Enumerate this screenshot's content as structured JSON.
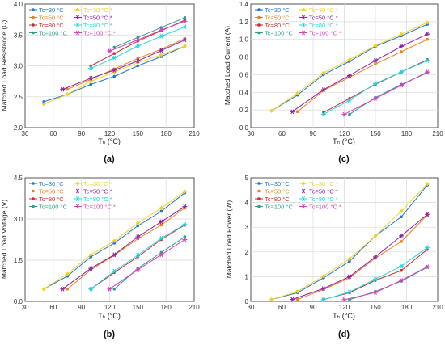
{
  "palette": {
    "c30": "#1f77d4",
    "c50": "#f07f1a",
    "c80": "#d62728",
    "c100": "#2ca089",
    "c30s": "#f5d21a",
    "c50s": "#8e22a8",
    "c80s": "#1fd8e8",
    "c100s": "#d63fc4"
  },
  "legend_labels": [
    "Tc=30 °C",
    "Tc=50 °C",
    "Tc=80 °C",
    "Tc=100 °C",
    "Tc=30 °C *",
    "Tc=50 °C *",
    "Tc=80 °C *",
    "Tc=100 °C *"
  ],
  "chart_data": [
    {
      "type": "line",
      "panel_label": "(a)",
      "xlabel": "Tₕ (°C)",
      "ylabel": "Matched Load Resistance (Ω)",
      "xlim": [
        30,
        210
      ],
      "ylim": [
        2.0,
        4.0
      ],
      "xticks": [
        "30",
        "60",
        "90",
        "120",
        "150",
        "180",
        "210"
      ],
      "yticks": [
        "2.0",
        "2.5",
        "3.0",
        "3.5",
        "4.0"
      ],
      "series": [
        {
          "name": "Tc=30 °C",
          "x": [
            50,
            75,
            100,
            125,
            150,
            175,
            200
          ],
          "y": [
            2.42,
            2.54,
            2.7,
            2.83,
            3.0,
            3.15,
            3.32
          ]
        },
        {
          "name": "Tc=50 °C",
          "x": [
            75,
            100,
            125,
            150,
            175,
            200
          ],
          "y": [
            2.62,
            2.78,
            2.95,
            3.12,
            3.27,
            3.44
          ]
        },
        {
          "name": "Tc=80 °C",
          "x": [
            100,
            125,
            150,
            175,
            200
          ],
          "y": [
            3.0,
            3.2,
            3.4,
            3.57,
            3.74
          ]
        },
        {
          "name": "Tc=100 °C",
          "x": [
            125,
            150,
            175,
            200
          ],
          "y": [
            3.3,
            3.46,
            3.62,
            3.78
          ]
        },
        {
          "name": "Tc=30 °C *",
          "x": [
            50,
            75,
            100,
            125,
            150,
            175,
            200
          ],
          "y": [
            2.38,
            2.54,
            2.75,
            2.9,
            3.05,
            3.18,
            3.32
          ]
        },
        {
          "name": "Tc=50 °C *",
          "x": [
            70,
            100,
            125,
            150,
            175,
            200
          ],
          "y": [
            2.62,
            2.8,
            2.93,
            3.08,
            3.25,
            3.42
          ]
        },
        {
          "name": "Tc=80 °C *",
          "x": [
            100,
            125,
            150,
            175,
            200
          ],
          "y": [
            2.96,
            3.13,
            3.32,
            3.48,
            3.63
          ]
        },
        {
          "name": "Tc=100 °C *",
          "x": [
            120,
            150,
            175,
            200
          ],
          "y": [
            3.24,
            3.42,
            3.58,
            3.72
          ]
        }
      ]
    },
    {
      "type": "line",
      "panel_label": "(c)",
      "xlabel": "Tₕ (°C)",
      "ylabel": "Matched Load Current (A)",
      "xlim": [
        30,
        210
      ],
      "ylim": [
        0.0,
        1.4
      ],
      "xticks": [
        "30",
        "60",
        "90",
        "120",
        "150",
        "180",
        "210"
      ],
      "yticks": [
        "0.0",
        "0.2",
        "0.4",
        "0.6",
        "0.8",
        "1.0",
        "1.2",
        "1.4"
      ],
      "series": [
        {
          "name": "Tc=30 °C",
          "x": [
            50,
            75,
            100,
            125,
            150,
            175,
            200
          ],
          "y": [
            0.19,
            0.37,
            0.6,
            0.75,
            0.92,
            1.04,
            1.17
          ]
        },
        {
          "name": "Tc=50 °C",
          "x": [
            75,
            100,
            125,
            150,
            175,
            200
          ],
          "y": [
            0.18,
            0.42,
            0.57,
            0.72,
            0.86,
            1.0
          ]
        },
        {
          "name": "Tc=80 °C",
          "x": [
            100,
            125,
            150,
            175,
            200
          ],
          "y": [
            0.17,
            0.33,
            0.49,
            0.63,
            0.77
          ]
        },
        {
          "name": "Tc=100 °C",
          "x": [
            125,
            150,
            175,
            200
          ],
          "y": [
            0.15,
            0.34,
            0.49,
            0.62
          ]
        },
        {
          "name": "Tc=30 °C *",
          "x": [
            50,
            75,
            100,
            125,
            150,
            175,
            200
          ],
          "y": [
            0.19,
            0.39,
            0.62,
            0.77,
            0.93,
            1.06,
            1.19
          ]
        },
        {
          "name": "Tc=50 °C *",
          "x": [
            70,
            100,
            125,
            150,
            175,
            200
          ],
          "y": [
            0.18,
            0.43,
            0.59,
            0.76,
            0.92,
            1.06
          ]
        },
        {
          "name": "Tc=80 °C *",
          "x": [
            100,
            125,
            150,
            175,
            200
          ],
          "y": [
            0.15,
            0.31,
            0.5,
            0.63,
            0.76
          ]
        },
        {
          "name": "Tc=100 °C *",
          "x": [
            120,
            150,
            175,
            200
          ],
          "y": [
            0.15,
            0.33,
            0.48,
            0.63
          ]
        }
      ]
    },
    {
      "type": "line",
      "panel_label": "(b)",
      "xlabel": "Tₕ (°C)",
      "ylabel": "Matched Load Voltage (V)",
      "xlim": [
        30,
        210
      ],
      "ylim": [
        0.0,
        4.5
      ],
      "xticks": [
        "30",
        "60",
        "90",
        "120",
        "150",
        "180",
        "210"
      ],
      "yticks": [
        "0.0",
        "1.5",
        "3.0",
        "4.5"
      ],
      "series": [
        {
          "name": "Tc=30 °C",
          "x": [
            50,
            75,
            100,
            125,
            150,
            175,
            200
          ],
          "y": [
            0.45,
            0.92,
            1.62,
            2.12,
            2.75,
            3.28,
            3.95
          ]
        },
        {
          "name": "Tc=50 °C",
          "x": [
            75,
            100,
            125,
            150,
            175,
            200
          ],
          "y": [
            0.45,
            1.15,
            1.68,
            2.28,
            2.78,
            3.4
          ]
        },
        {
          "name": "Tc=80 °C",
          "x": [
            100,
            125,
            150,
            175,
            200
          ],
          "y": [
            0.45,
            1.05,
            1.62,
            2.25,
            2.78
          ]
        },
        {
          "name": "Tc=100 °C",
          "x": [
            125,
            150,
            175,
            200
          ],
          "y": [
            0.45,
            1.2,
            1.78,
            2.35
          ]
        },
        {
          "name": "Tc=30 °C *",
          "x": [
            50,
            75,
            100,
            125,
            150,
            175,
            200
          ],
          "y": [
            0.45,
            1.0,
            1.7,
            2.2,
            2.85,
            3.4,
            4.0
          ]
        },
        {
          "name": "Tc=50 °C *",
          "x": [
            70,
            100,
            125,
            150,
            175,
            200
          ],
          "y": [
            0.45,
            1.2,
            1.7,
            2.35,
            2.9,
            3.45
          ]
        },
        {
          "name": "Tc=80 °C *",
          "x": [
            100,
            125,
            150,
            175,
            200
          ],
          "y": [
            0.45,
            1.1,
            1.68,
            2.3,
            2.8
          ]
        },
        {
          "name": "Tc=100 °C *",
          "x": [
            120,
            150,
            175,
            200
          ],
          "y": [
            0.45,
            1.15,
            1.7,
            2.25
          ]
        }
      ]
    },
    {
      "type": "line",
      "panel_label": "(d)",
      "xlabel": "Tₕ (°C)",
      "ylabel": "Matched Load Power (W)",
      "xlim": [
        30,
        210
      ],
      "ylim": [
        0,
        5
      ],
      "xticks": [
        "30",
        "60",
        "90",
        "120",
        "150",
        "180",
        "210"
      ],
      "yticks": [
        "0",
        "1",
        "2",
        "3",
        "4",
        "5"
      ],
      "series": [
        {
          "name": "Tc=30 °C",
          "x": [
            50,
            75,
            100,
            125,
            150,
            175,
            200
          ],
          "y": [
            0.08,
            0.35,
            0.95,
            1.62,
            2.65,
            3.42,
            4.7
          ]
        },
        {
          "name": "Tc=50 °C",
          "x": [
            75,
            100,
            125,
            150,
            175,
            200
          ],
          "y": [
            0.08,
            0.48,
            0.95,
            1.75,
            2.42,
            3.5
          ]
        },
        {
          "name": "Tc=80 °C",
          "x": [
            100,
            125,
            150,
            175,
            200
          ],
          "y": [
            0.08,
            0.35,
            0.85,
            1.25,
            2.1
          ]
        },
        {
          "name": "Tc=100 °C",
          "x": [
            125,
            150,
            175,
            200
          ],
          "y": [
            0.07,
            0.4,
            0.82,
            1.38
          ]
        },
        {
          "name": "Tc=30 °C *",
          "x": [
            50,
            75,
            100,
            125,
            150,
            175,
            200
          ],
          "y": [
            0.08,
            0.4,
            1.02,
            1.72,
            2.65,
            3.65,
            4.75
          ]
        },
        {
          "name": "Tc=50 °C *",
          "x": [
            70,
            100,
            125,
            150,
            175,
            200
          ],
          "y": [
            0.08,
            0.52,
            1.0,
            1.8,
            2.65,
            3.52
          ]
        },
        {
          "name": "Tc=80 °C *",
          "x": [
            100,
            125,
            150,
            175,
            200
          ],
          "y": [
            0.07,
            0.38,
            0.9,
            1.42,
            2.18
          ]
        },
        {
          "name": "Tc=100 °C *",
          "x": [
            120,
            150,
            175,
            200
          ],
          "y": [
            0.07,
            0.36,
            0.85,
            1.4
          ]
        }
      ]
    }
  ]
}
